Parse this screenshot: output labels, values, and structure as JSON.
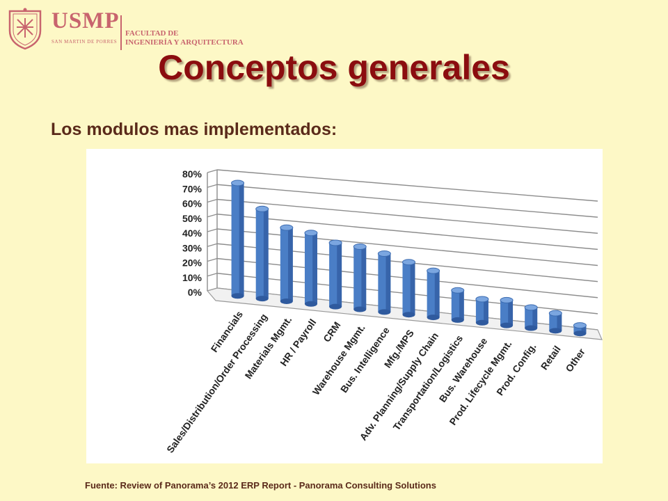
{
  "header": {
    "logo": {
      "name": "USMP",
      "university": "SAN MARTIN DE PORRES",
      "faculty_line1": "FACULTAD DE",
      "faculty_line2": "INGENIERÍA Y ARQUITECTURA",
      "seal_text": "VERITAS LIBERABIT VOS"
    },
    "title": "Conceptos generales"
  },
  "subtitle": "Los modulos mas implementados:",
  "footer": "Fuente: Review of Panorama’s 2012 ERP Report - Panorama Consulting Solutions",
  "colors": {
    "title": "#8b0d0f",
    "bar": "#4a7ec6",
    "background": "#fdf8c6",
    "logo": "#c8646e"
  },
  "chart_data": {
    "type": "bar",
    "title": "",
    "xlabel": "",
    "ylabel": "",
    "ylim": [
      0,
      80
    ],
    "yticks": [
      "0%",
      "10%",
      "20%",
      "30%",
      "40%",
      "50%",
      "60%",
      "70%",
      "80%"
    ],
    "grid": true,
    "categories": [
      "Financials",
      "Sales/Distribution/Order Processing",
      "Materials Mgmt.",
      "HR / Payroll",
      "CRM",
      "Warehouse Mgmt.",
      "Bus. Intelligence",
      "Mfg./MPS",
      "Adv. Planning/Supply Chain",
      "Transportation/Logistics",
      "Bus. Warehouse",
      "Prod. Lifecycle Mgmt.",
      "Prod. Config.",
      "Retail",
      "Other"
    ],
    "values": [
      76,
      60,
      49,
      47,
      42,
      41,
      38,
      34,
      30,
      19,
      15,
      16,
      13,
      11,
      5
    ]
  }
}
